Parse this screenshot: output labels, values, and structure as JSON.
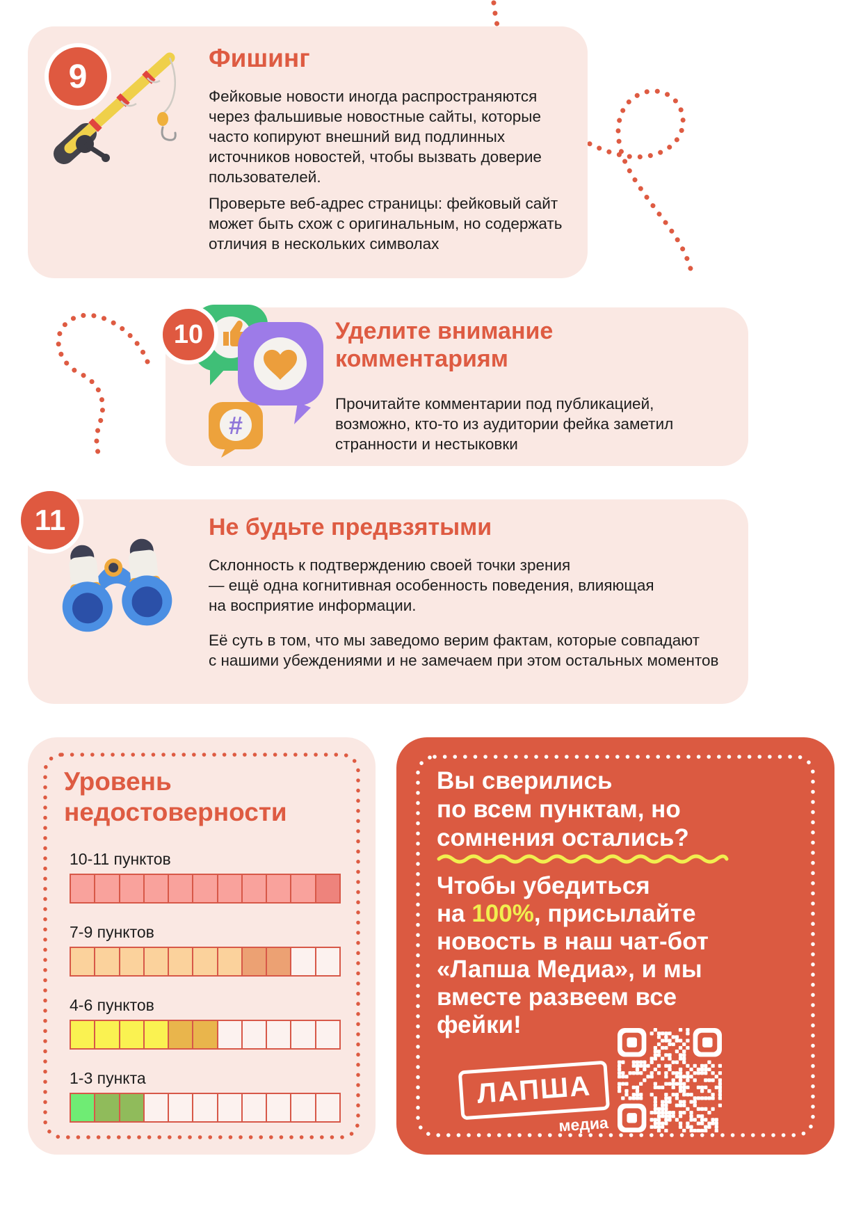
{
  "page": {
    "background": "#FFFFFF",
    "accent": "#DE5B42"
  },
  "cards": {
    "phishing": {
      "number": "9",
      "title": "Фишинг",
      "icon": "fishing-rod-icon",
      "paragraph1": "Фейковые новости иногда распространяются\nчерез фальшивые новостные сайты, которые\nчасто копируют внешний вид подлинных\nисточников новостей, чтобы вызвать доверие\nпользователей.",
      "paragraph2": "Проверьте веб-адрес страницы: фейковый сайт\nможет быть схож с оригинальным, но содержать\nотличия в нескольких символах"
    },
    "comments": {
      "number": "10",
      "title": "Уделите внимание\nкомментариям",
      "icon": "social-reactions-icon",
      "hashtag_glyph": "#",
      "paragraph1": "Прочитайте комментарии под публикацией,\nвозможно, кто-то из аудитории фейка заметил\nстранности и нестыковки"
    },
    "bias": {
      "number": "11",
      "title": "Не будьте предвзятыми",
      "icon": "binoculars-icon",
      "paragraph1": "Склонность к подтверждению своей точки зрения\n— ещё одна когнитивная особенность поведения, влияющая\nна восприятие информации.",
      "paragraph2": "Её суть в том, что мы заведомо верим фактам, которые совпадают\nс нашими убеждениями и не замечаем при этом остальных моментов"
    }
  },
  "level_scale": {
    "title": "Уровень\nнедостоверности",
    "cells_total": 11,
    "border_color": "#D75848",
    "palette": {
      "pink": "#F9A29C",
      "pink_dark": "#EE837C",
      "peach": "#FBD29C",
      "peach_dark": "#ECA173",
      "yellow": "#FAF251",
      "yellow_dark": "#E9B54C",
      "green": "#6FEC74",
      "green_dark": "#90BB5B",
      "empty": "#FCF2EF"
    },
    "rows": [
      {
        "label": "10-11 пунктов",
        "filled": 11,
        "cells": [
          "pink",
          "pink",
          "pink",
          "pink",
          "pink",
          "pink",
          "pink",
          "pink",
          "pink",
          "pink",
          "pink_dark"
        ]
      },
      {
        "label": "7-9 пунктов",
        "filled": 9,
        "cells": [
          "peach",
          "peach",
          "peach",
          "peach",
          "peach",
          "peach",
          "peach",
          "peach_dark",
          "peach_dark",
          "empty",
          "empty"
        ]
      },
      {
        "label": "4-6 пунктов",
        "filled": 6,
        "cells": [
          "yellow",
          "yellow",
          "yellow",
          "yellow",
          "yellow_dark",
          "yellow_dark",
          "empty",
          "empty",
          "empty",
          "empty",
          "empty"
        ]
      },
      {
        "label": "1-3 пункта",
        "filled": 3,
        "cells": [
          "green",
          "green_dark",
          "green_dark",
          "empty",
          "empty",
          "empty",
          "empty",
          "empty",
          "empty",
          "empty",
          "empty"
        ]
      }
    ]
  },
  "cta": {
    "background": "#DB5A41",
    "title": "Вы сверились\nпо всем пунктам, но\nсомнения остались?",
    "body_before": "Чтобы убедиться\nна ",
    "body_highlight": "100%",
    "highlight_color": "#F1EE4F",
    "body_after": ", присылайте\nновость в наш чат-бот\n«Лапша Медиа», и мы\nвместе развеем все\nфейки!",
    "logo_text": "ЛАПША",
    "logo_subtitle": "медиа"
  }
}
